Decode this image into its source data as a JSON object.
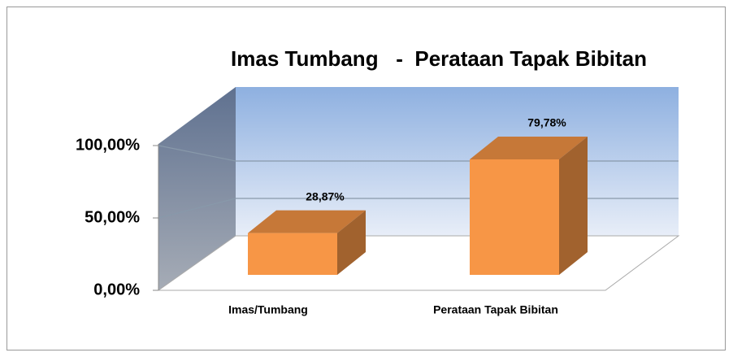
{
  "chart_data": {
    "type": "bar3d",
    "title": "Imas Tumbang   -  Perataan Tapak Bibitan",
    "categories": [
      "Imas/Tumbang",
      "Perataan Tapak Bibitan"
    ],
    "values": [
      28.87,
      79.78
    ],
    "value_labels": [
      "28,87%",
      "79,78%"
    ],
    "color": "#f79646",
    "ylim": [
      0,
      100
    ],
    "yticks": [
      {
        "value": 0,
        "label": "0,00%"
      },
      {
        "value": 50,
        "label": "50,00%"
      },
      {
        "value": 100,
        "label": "100,00%"
      }
    ],
    "grid": true
  }
}
